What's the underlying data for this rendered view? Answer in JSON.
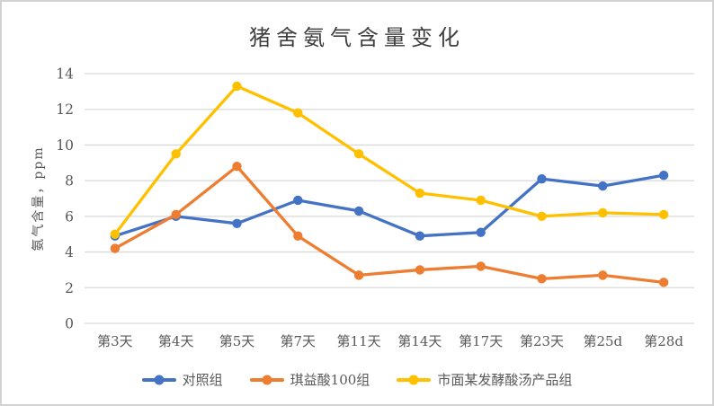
{
  "chart_data": {
    "type": "line",
    "title": "猪舍氨气含量变化",
    "ylabel": "氨气含量，ppm",
    "xlabel": "",
    "ylim": [
      0,
      14
    ],
    "yticks": [
      0,
      2,
      4,
      6,
      8,
      10,
      12,
      14
    ],
    "grid": "horizontal-only",
    "legend_position": "bottom",
    "categories": [
      "第3天",
      "第4天",
      "第5天",
      "第7天",
      "第11天",
      "第14天",
      "第17天",
      "第23天",
      "第25d",
      "第28d"
    ],
    "series": [
      {
        "name": "对照组",
        "color": "#4472C4",
        "values": [
          4.9,
          6.0,
          5.6,
          6.9,
          6.3,
          4.9,
          5.1,
          8.1,
          7.7,
          8.3
        ]
      },
      {
        "name": "琪益酸100组",
        "color": "#ED7D31",
        "values": [
          4.2,
          6.1,
          8.8,
          4.9,
          2.7,
          3.0,
          3.2,
          2.5,
          2.7,
          2.3
        ]
      },
      {
        "name": "市面某发酵酸汤产品组",
        "color": "#FFC000",
        "values": [
          5.0,
          9.5,
          13.3,
          11.8,
          9.5,
          7.3,
          6.9,
          6.0,
          6.2,
          6.1
        ]
      }
    ],
    "colors": {
      "gridline": "#d9d9d9",
      "axis_text": "#595959",
      "title_text": "#3f3f3f",
      "background": "#ffffff",
      "frame_border": "#d2d2d2"
    }
  }
}
